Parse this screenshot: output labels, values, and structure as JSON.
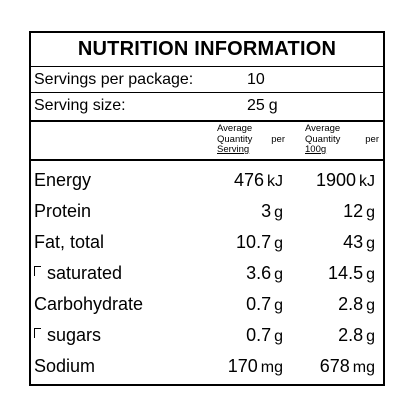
{
  "title": "NUTRITION INFORMATION",
  "servings_per_package": {
    "label": "Servings per package:",
    "value": "10"
  },
  "serving_size": {
    "label": "Serving size:",
    "value": "25",
    "unit": "g"
  },
  "column_headers": {
    "per_serving": {
      "line1": "Average",
      "line2a": "Quantity",
      "line2b": "per",
      "line3": "Serving"
    },
    "per_100g": {
      "line1": "Average",
      "line2a": "Quantity",
      "line2b": "per",
      "line3": "100g"
    }
  },
  "rows": [
    {
      "name": "Energy",
      "sub": false,
      "serving": "476",
      "serving_unit": "kJ",
      "per100": "1900",
      "per100_unit": "kJ"
    },
    {
      "name": "Protein",
      "sub": false,
      "serving": "3",
      "serving_unit": "g",
      "per100": "12",
      "per100_unit": "g"
    },
    {
      "name": "Fat, total",
      "sub": false,
      "serving": "10.7",
      "serving_unit": "g",
      "per100": "43",
      "per100_unit": "g"
    },
    {
      "name": "saturated",
      "sub": true,
      "serving": "3.6",
      "serving_unit": "g",
      "per100": "14.5",
      "per100_unit": "g"
    },
    {
      "name": "Carbohydrate",
      "sub": false,
      "serving": "0.7",
      "serving_unit": "g",
      "per100": "2.8",
      "per100_unit": "g"
    },
    {
      "name": "sugars",
      "sub": true,
      "serving": "0.7",
      "serving_unit": "g",
      "per100": "2.8",
      "per100_unit": "g"
    },
    {
      "name": "Sodium",
      "sub": false,
      "serving": "170",
      "serving_unit": "mg",
      "per100": "678",
      "per100_unit": "mg"
    }
  ]
}
